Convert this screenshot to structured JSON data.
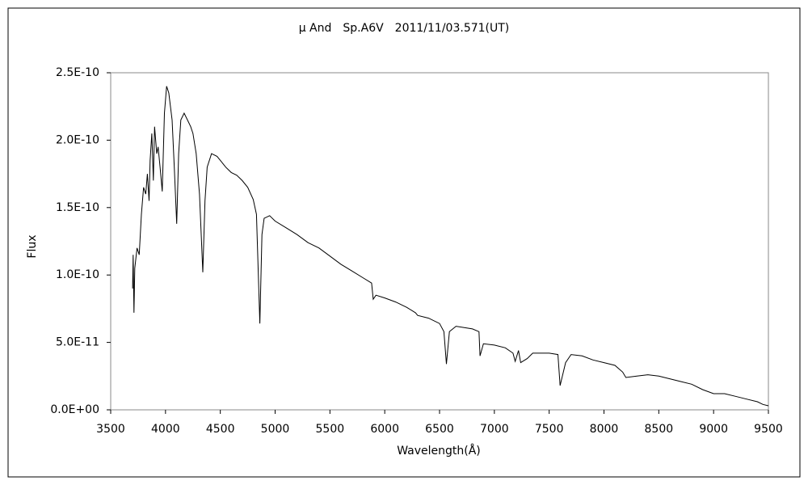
{
  "chart_data": {
    "type": "line",
    "title": "μ And　Sp.A6V　2011/11/03.571(UT)",
    "x_label": "Wavelength(Å)",
    "y_label": "Flux",
    "color": "#000000",
    "grid": false,
    "xlim": [
      3500,
      9500
    ],
    "xticks": [
      3500,
      4000,
      4500,
      5000,
      5500,
      6000,
      6500,
      7000,
      7500,
      8000,
      8500,
      9000,
      9500
    ],
    "ylim": [
      0,
      2.5e-10
    ],
    "yticks": [
      {
        "value": 0,
        "label": "0.0E+00"
      },
      {
        "value": 5e-11,
        "label": "5.0E-11"
      },
      {
        "value": 1e-10,
        "label": "1.0E-10"
      },
      {
        "value": 1.5e-10,
        "label": "1.5E-10"
      },
      {
        "value": 2e-10,
        "label": "2.0E-10"
      },
      {
        "value": 2.5e-10,
        "label": "2.5E-10"
      }
    ],
    "x": [
      3700,
      3705,
      3712,
      3720,
      3740,
      3760,
      3780,
      3800,
      3820,
      3835,
      3850,
      3860,
      3875,
      3889,
      3900,
      3920,
      3933,
      3950,
      3970,
      3990,
      4010,
      4030,
      4060,
      4080,
      4102,
      4120,
      4140,
      4170,
      4200,
      4230,
      4250,
      4280,
      4310,
      4340,
      4360,
      4380,
      4420,
      4470,
      4500,
      4550,
      4600,
      4650,
      4700,
      4750,
      4800,
      4830,
      4861,
      4880,
      4900,
      4950,
      5000,
      5100,
      5200,
      5300,
      5400,
      5500,
      5600,
      5700,
      5800,
      5880,
      5895,
      5920,
      6000,
      6100,
      6200,
      6280,
      6300,
      6400,
      6500,
      6540,
      6563,
      6590,
      6650,
      6800,
      6860,
      6869,
      6900,
      7000,
      7100,
      7170,
      7190,
      7220,
      7240,
      7300,
      7350,
      7500,
      7580,
      7600,
      7650,
      7700,
      7800,
      7900,
      8000,
      8100,
      8170,
      8200,
      8300,
      8400,
      8500,
      8600,
      8700,
      8800,
      8900,
      9000,
      9100,
      9200,
      9300,
      9400,
      9450,
      9500
    ],
    "values": [
      9e-11,
      1.15e-10,
      7.2e-11,
      1.05e-10,
      1.2e-10,
      1.15e-10,
      1.45e-10,
      1.65e-10,
      1.6e-10,
      1.75e-10,
      1.55e-10,
      1.85e-10,
      2.05e-10,
      1.7e-10,
      2.1e-10,
      1.9e-10,
      1.95e-10,
      1.8e-10,
      1.62e-10,
      2.2e-10,
      2.4e-10,
      2.35e-10,
      2.15e-10,
      1.8e-10,
      1.38e-10,
      1.9e-10,
      2.15e-10,
      2.2e-10,
      2.15e-10,
      2.1e-10,
      2.05e-10,
      1.9e-10,
      1.6e-10,
      1.02e-10,
      1.55e-10,
      1.8e-10,
      1.9e-10,
      1.88e-10,
      1.85e-10,
      1.8e-10,
      1.76e-10,
      1.74e-10,
      1.7e-10,
      1.65e-10,
      1.56e-10,
      1.45e-10,
      6.4e-11,
      1.3e-10,
      1.42e-10,
      1.44e-10,
      1.4e-10,
      1.35e-10,
      1.3e-10,
      1.24e-10,
      1.2e-10,
      1.14e-10,
      1.08e-10,
      1.03e-10,
      9.8e-11,
      9.4e-11,
      8.2e-11,
      8.5e-11,
      8.3e-11,
      8e-11,
      7.6e-11,
      7.2e-11,
      7e-11,
      6.8e-11,
      6.4e-11,
      5.8e-11,
      3.4e-11,
      5.8e-11,
      6.2e-11,
      6e-11,
      5.8e-11,
      4e-11,
      4.9e-11,
      4.8e-11,
      4.6e-11,
      4.2e-11,
      3.6e-11,
      4.4e-11,
      3.5e-11,
      3.8e-11,
      4.2e-11,
      4.2e-11,
      4.1e-11,
      1.8e-11,
      3.5e-11,
      4.1e-11,
      4e-11,
      3.7e-11,
      3.5e-11,
      3.3e-11,
      2.8e-11,
      2.4e-11,
      2.5e-11,
      2.6e-11,
      2.5e-11,
      2.3e-11,
      2.1e-11,
      1.9e-11,
      1.5e-11,
      1.2e-11,
      1.2e-11,
      1e-11,
      8e-12,
      6e-12,
      4e-12,
      3e-12
    ]
  }
}
